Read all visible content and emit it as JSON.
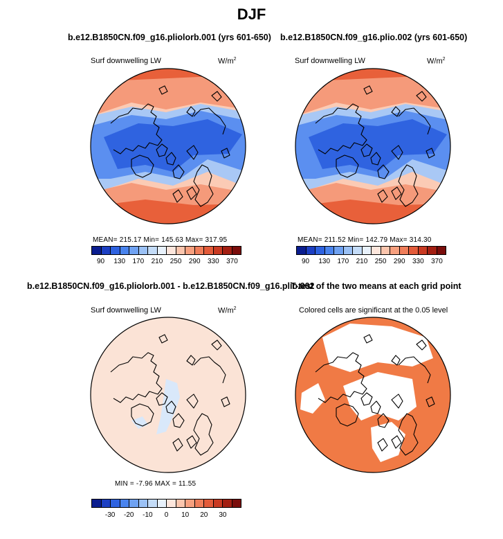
{
  "figure": {
    "title": "DJF"
  },
  "panels": [
    {
      "title": "b.e12.B1850CN.f09_g16.pliolorb.001 (yrs 601-650)",
      "variable": "Surf downwelling LW",
      "units_base": "W/m",
      "units_exp": "2",
      "stats": "MEAN= 215.17   Min= 145.63   Max= 317.95"
    },
    {
      "title": "b.e12.B1850CN.f09_g16.plio.002 (yrs 601-650)",
      "variable": "Surf downwelling LW",
      "units_base": "W/m",
      "units_exp": "2",
      "stats": "MEAN= 211.52   Min= 142.79   Max= 314.30"
    },
    {
      "title": "b.e12.B1850CN.f09_g16.pliolorb.001 - b.e12.B1850CN.f09_g16.plio.002",
      "variable": "Surf downwelling LW",
      "units_base": "W/m",
      "units_exp": "2",
      "stats": "MIN =   -7.96 MAX =   11.55"
    },
    {
      "title": "T-test of the two means at each grid point",
      "variable": "Colored cells are significant at the 0.05 level"
    }
  ],
  "chart_data": [
    {
      "type": "heatmap",
      "projection": "north polar stereographic",
      "title": "b.e12.B1850CN.f09_g16.pliolorb.001 (yrs 601-650)",
      "variable": "Surf downwelling LW",
      "units": "W/m2",
      "mean": 215.17,
      "min": 145.63,
      "max": 317.95,
      "colorbar_ticks": [
        "90",
        "130",
        "170",
        "210",
        "250",
        "290",
        "330",
        "370"
      ],
      "colorbar_colors": [
        "#0a1d8f",
        "#1c3fc3",
        "#2e62e0",
        "#4a84ee",
        "#6fa2f2",
        "#9bc1f5",
        "#c4dcf8",
        "#e8f1fb",
        "#fde6dc",
        "#fbc5ad",
        "#f7a07f",
        "#f07e5a",
        "#e35b3a",
        "#c93a22",
        "#a31f12",
        "#7a0d0b"
      ]
    },
    {
      "type": "heatmap",
      "projection": "north polar stereographic",
      "title": "b.e12.B1850CN.f09_g16.plio.002 (yrs 601-650)",
      "variable": "Surf downwelling LW",
      "units": "W/m2",
      "mean": 211.52,
      "min": 142.79,
      "max": 314.3,
      "colorbar_ticks": [
        "90",
        "130",
        "170",
        "210",
        "250",
        "290",
        "330",
        "370"
      ],
      "colorbar_colors": [
        "#0a1d8f",
        "#1c3fc3",
        "#2e62e0",
        "#4a84ee",
        "#6fa2f2",
        "#9bc1f5",
        "#c4dcf8",
        "#e8f1fb",
        "#fde6dc",
        "#fbc5ad",
        "#f7a07f",
        "#f07e5a",
        "#e35b3a",
        "#c93a22",
        "#a31f12",
        "#7a0d0b"
      ]
    },
    {
      "type": "heatmap",
      "projection": "north polar stereographic",
      "title": "b.e12.B1850CN.f09_g16.pliolorb.001 - b.e12.B1850CN.f09_g16.plio.002",
      "variable": "Surf downwelling LW",
      "units": "W/m2",
      "min": -7.96,
      "max": 11.55,
      "colorbar_ticks": [
        "-30",
        "-20",
        "-10",
        "0",
        "10",
        "20",
        "30"
      ],
      "colorbar_colors": [
        "#0a1d8f",
        "#1c3fc3",
        "#2e62e0",
        "#4a84ee",
        "#6fa2f2",
        "#9bc1f5",
        "#c4dcf8",
        "#e8f1fb",
        "#fde6dc",
        "#fbc5ad",
        "#f7a07f",
        "#f07e5a",
        "#e35b3a",
        "#c93a22",
        "#a31f12",
        "#7a0d0b"
      ]
    },
    {
      "type": "heatmap",
      "projection": "north polar stereographic",
      "title": "T-test of the two means at each grid point",
      "variable": "Colored cells are significant at the 0.05 level",
      "significant_color": "#f07a45"
    }
  ],
  "colors": {
    "coast": "#000000",
    "blue_deep": "#2f63e0",
    "blue_mid": "#5b8ff0",
    "blue_light": "#a9c8f5",
    "orange_deep": "#e8603a",
    "orange_mid": "#f59a7a",
    "orange_light": "#fbcbb5",
    "diff_bg": "#fbe3d6",
    "diff_blue": "#d9e8fa",
    "sig": "#f07a45"
  }
}
